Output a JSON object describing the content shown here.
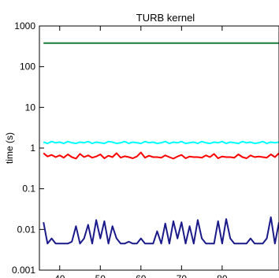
{
  "chart_data": {
    "type": "line",
    "title": "TURB kernel",
    "xlabel": "",
    "ylabel": "time (s)",
    "y_scale": "log",
    "ylim": [
      0.001,
      1000
    ],
    "y_ticks": [
      {
        "value": 1000,
        "label": "1000"
      },
      {
        "value": 100,
        "label": "100"
      },
      {
        "value": 10,
        "label": "10"
      },
      {
        "value": 1,
        "label": "1"
      },
      {
        "value": 0.1,
        "label": "0.1"
      },
      {
        "value": 0.01,
        "label": "0.01"
      },
      {
        "value": 0.001,
        "label": "0.001"
      }
    ],
    "xlim": [
      35,
      94
    ],
    "x_ticks": [
      {
        "value": 40,
        "label": "40"
      },
      {
        "value": 50,
        "label": "50"
      },
      {
        "value": 60,
        "label": "60"
      },
      {
        "value": 70,
        "label": "70"
      },
      {
        "value": 80,
        "label": "80"
      }
    ],
    "grid": false,
    "legend": "none",
    "x": [
      36,
      37,
      38,
      39,
      40,
      41,
      42,
      43,
      44,
      45,
      46,
      47,
      48,
      49,
      50,
      51,
      52,
      53,
      54,
      55,
      56,
      57,
      58,
      59,
      60,
      61,
      62,
      63,
      64,
      65,
      66,
      67,
      68,
      69,
      70,
      71,
      72,
      73,
      74,
      75,
      76,
      77,
      78,
      79,
      80,
      81,
      82,
      83,
      84,
      85,
      86,
      87,
      88,
      89,
      90,
      91,
      92,
      93,
      94
    ],
    "series": [
      {
        "color": "#1a7a3a",
        "values": [
          380,
          380,
          380,
          380,
          380,
          380,
          380,
          380,
          380,
          380,
          380,
          380,
          380,
          380,
          380,
          380,
          380,
          380,
          380,
          380,
          380,
          380,
          380,
          380,
          380,
          380,
          380,
          380,
          380,
          380,
          380,
          380,
          380,
          380,
          380,
          380,
          380,
          380,
          380,
          380,
          380,
          380,
          380,
          380,
          380,
          380,
          380,
          380,
          380,
          380,
          380,
          380,
          380,
          380,
          380,
          380,
          380,
          380,
          380
        ]
      },
      {
        "color": "#00ffff",
        "values": [
          1.4,
          1.3,
          1.45,
          1.35,
          1.4,
          1.3,
          1.45,
          1.35,
          1.3,
          1.4,
          1.35,
          1.45,
          1.3,
          1.4,
          1.35,
          1.3,
          1.45,
          1.4,
          1.3,
          1.35,
          1.45,
          1.3,
          1.4,
          1.35,
          1.3,
          1.45,
          1.35,
          1.4,
          1.3,
          1.35,
          1.45,
          1.3,
          1.4,
          1.35,
          1.45,
          1.3,
          1.35,
          1.4,
          1.3,
          1.45,
          1.35,
          1.3,
          1.4,
          1.35,
          1.45,
          1.3,
          1.4,
          1.35,
          1.3,
          1.45,
          1.35,
          1.4,
          1.3,
          1.35,
          1.45,
          1.3,
          1.4,
          1.35,
          1.4
        ]
      },
      {
        "color": "#ff0000",
        "values": [
          0.75,
          0.62,
          0.68,
          0.6,
          0.66,
          0.58,
          0.7,
          0.6,
          0.55,
          0.72,
          0.6,
          0.66,
          0.58,
          0.62,
          0.7,
          0.56,
          0.65,
          0.6,
          0.75,
          0.58,
          0.63,
          0.6,
          0.56,
          0.62,
          0.78,
          0.58,
          0.65,
          0.6,
          0.6,
          0.58,
          0.66,
          0.6,
          0.55,
          0.62,
          0.68,
          0.56,
          0.62,
          0.6,
          0.6,
          0.58,
          0.66,
          0.6,
          0.72,
          0.56,
          0.62,
          0.6,
          0.6,
          0.58,
          0.7,
          0.6,
          0.56,
          0.66,
          0.6,
          0.62,
          0.6,
          0.58,
          0.7,
          0.6,
          0.75
        ]
      },
      {
        "color": "#1a1a8a",
        "values": [
          0.015,
          0.0045,
          0.006,
          0.0045,
          0.0045,
          0.0045,
          0.0045,
          0.005,
          0.012,
          0.0045,
          0.006,
          0.013,
          0.0045,
          0.017,
          0.006,
          0.016,
          0.0045,
          0.012,
          0.006,
          0.0045,
          0.0045,
          0.005,
          0.0045,
          0.0045,
          0.006,
          0.0045,
          0.0045,
          0.0045,
          0.009,
          0.0045,
          0.014,
          0.0045,
          0.016,
          0.006,
          0.015,
          0.0045,
          0.012,
          0.0045,
          0.017,
          0.006,
          0.0045,
          0.0045,
          0.0045,
          0.016,
          0.0045,
          0.018,
          0.006,
          0.0045,
          0.0045,
          0.0045,
          0.0045,
          0.006,
          0.0045,
          0.0045,
          0.0045,
          0.006,
          0.02,
          0.0045,
          0.015
        ]
      }
    ]
  }
}
